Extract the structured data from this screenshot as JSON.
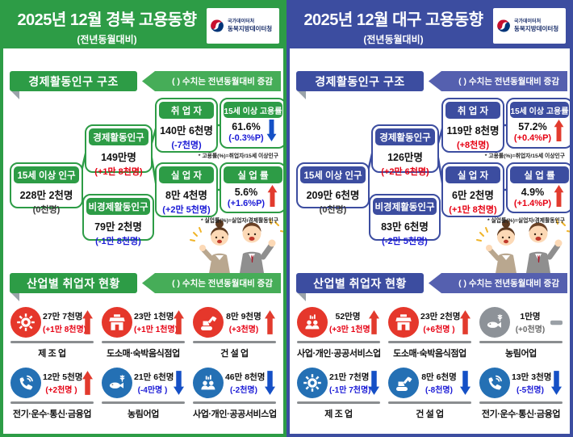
{
  "trend_colors": {
    "up": "#e23b2e",
    "down": "#1550c6",
    "flat": "#9aa0a6"
  },
  "panels": [
    {
      "region": "gyeongbuk",
      "title": "2025년 12월 경북 고용동향",
      "subtitle": "(전년동월대비)",
      "colors": {
        "accent": "#2d9c46",
        "ribbon": "#46ad58"
      },
      "logo": {
        "line1": "국가데이터처",
        "line2": "동북지방데이터청"
      },
      "section1": {
        "title": "경제활동인구 구조",
        "note": "(  ) 수치는 전년동월대비 증감"
      },
      "section2": {
        "title": "산업별 취업자 현황",
        "note": "(  ) 수치는 전년동월대비 증감"
      },
      "boxes": {
        "pop15": {
          "label": "15세 이상 인구",
          "value": "228만 2천명",
          "change": "(0천명)",
          "change_color": "#3a3a3a"
        },
        "econ": {
          "label": "경제활동인구",
          "value": "149만명",
          "change": "(+1만 8천명)",
          "change_color": "#e60012"
        },
        "nonecon": {
          "label": "비경제활동인구",
          "value": "79만 2천명",
          "change": "(-1만 8천명)",
          "change_color": "#1a1ad6"
        },
        "employed": {
          "label": "취 업 자",
          "value": "140만 6천명",
          "change": "(-7천명)",
          "change_color": "#1a1ad6"
        },
        "unemployed": {
          "label": "실 업 자",
          "value": "8만 4천명",
          "change": "(+2만 5천명)",
          "change_color": "#1a1ad6"
        },
        "emp_rate": {
          "label": "15세 이상 고용률",
          "value": "61.6%",
          "change": "(-0.3%P)",
          "change_color": "#1a1ad6",
          "trend": "down",
          "note": "* 고용률(%)=취업자/15세 이상인구"
        },
        "unemp_rate": {
          "label": "실 업 률",
          "value": "5.6%",
          "change": "(+1.6%P)",
          "change_color": "#1a1ad6",
          "trend": "up",
          "note": "* 실업률(%)=실업자/경제활동인구"
        }
      },
      "industries": [
        {
          "icon": "gear",
          "icon_bg": "#e5372b",
          "value": "27만 7천명",
          "change": "(+1만 8천명)",
          "change_color": "#e60012",
          "trend": "up",
          "label": "제 조 업"
        },
        {
          "icon": "store",
          "icon_bg": "#e5372b",
          "value": "23만 1천명",
          "change": "(+1만 1천명)",
          "change_color": "#e60012",
          "trend": "up",
          "label": "도소매·숙박음식점업"
        },
        {
          "icon": "excavator",
          "icon_bg": "#e5372b",
          "value": "8만 9천명",
          "change": "(+3천명)",
          "change_color": "#e60012",
          "trend": "up",
          "label": "건 설 업"
        },
        {
          "icon": "telecom",
          "icon_bg": "#2470b4",
          "value": "12만 5천명",
          "change": "(+2천명 )",
          "change_color": "#e60012",
          "trend": "up",
          "label": "전기·운수·통신·금융업"
        },
        {
          "icon": "agriculture",
          "icon_bg": "#2470b4",
          "value": "21만 6천명",
          "change": "(-4만명 )",
          "change_color": "#1a1ad6",
          "trend": "down",
          "label": "농림어업"
        },
        {
          "icon": "services",
          "icon_bg": "#2470b4",
          "value": "46만 8천명",
          "change": "(-2천명)",
          "change_color": "#1a1ad6",
          "trend": "down",
          "label": "사업·개인·공공서비스업"
        }
      ]
    },
    {
      "region": "daegu",
      "title": "2025년 12월  대구 고용동향",
      "subtitle": "(전년동월대비)",
      "colors": {
        "accent": "#3c4da0",
        "ribbon": "#5560af"
      },
      "logo": {
        "line1": "국가데이터처",
        "line2": "동북지방데이터청"
      },
      "section1": {
        "title": "경제활동인구 구조",
        "note": "(  ) 수치는 전년동월대비 증감"
      },
      "section2": {
        "title": "산업별 취업자 현황",
        "note": "(  ) 수치는 전년동월대비 증감"
      },
      "boxes": {
        "pop15": {
          "label": "15세 이상 인구",
          "value": "209만 6천명",
          "change": "(0천명)",
          "change_color": "#3a3a3a"
        },
        "econ": {
          "label": "경제활동인구",
          "value": "126만명",
          "change": "(+2만 6천명)",
          "change_color": "#e60012"
        },
        "nonecon": {
          "label": "비경제활동인구",
          "value": "83만 6천명",
          "change": "(-2만 5천명)",
          "change_color": "#1a1ad6"
        },
        "employed": {
          "label": "취 업 자",
          "value": "119만 8천명",
          "change": "(+8천명)",
          "change_color": "#e60012"
        },
        "unemployed": {
          "label": "실 업 자",
          "value": "6만 2천명",
          "change": "(+1만 8천명)",
          "change_color": "#e60012"
        },
        "emp_rate": {
          "label": "15세 이상 고용률",
          "value": "57.2%",
          "change": "(+0.4%P)",
          "change_color": "#e60012",
          "trend": "up",
          "note": "* 고용률(%)=취업자/15세 이상인구"
        },
        "unemp_rate": {
          "label": "실 업 률",
          "value": "4.9%",
          "change": "(+1.4%P)",
          "change_color": "#e60012",
          "trend": "up",
          "note": "* 실업률(%)=실업자/경제활동인구"
        }
      },
      "industries": [
        {
          "icon": "services",
          "icon_bg": "#e5372b",
          "value": "52만명",
          "change": "(+3만 1천명 )",
          "change_color": "#e60012",
          "trend": "up",
          "label": "사업·개인·공공서비스업"
        },
        {
          "icon": "store",
          "icon_bg": "#e5372b",
          "value": "23만 2천명",
          "change": "(+6천명 )",
          "change_color": "#e60012",
          "trend": "up",
          "label": "도소매·숙박음식점업"
        },
        {
          "icon": "agriculture",
          "icon_bg": "#8d9298",
          "value": "1만명",
          "change": "(+0천명)",
          "change_color": "#6a6a6a",
          "trend": "flat",
          "label": "농림어업"
        },
        {
          "icon": "gear",
          "icon_bg": "#2470b4",
          "value": "21만 7천명",
          "change": "(-1만 7천명)",
          "change_color": "#1a1ad6",
          "trend": "down",
          "label": "제 조 업"
        },
        {
          "icon": "excavator",
          "icon_bg": "#2470b4",
          "value": "8만 6천명",
          "change": "(-8천명)",
          "change_color": "#1a1ad6",
          "trend": "down",
          "label": "건 설 업"
        },
        {
          "icon": "telecom",
          "icon_bg": "#2470b4",
          "value": "13만 3천명",
          "change": "(-5천명)",
          "change_color": "#1a1ad6",
          "trend": "down",
          "label": "전기·운수·통신·금융업"
        }
      ]
    }
  ]
}
